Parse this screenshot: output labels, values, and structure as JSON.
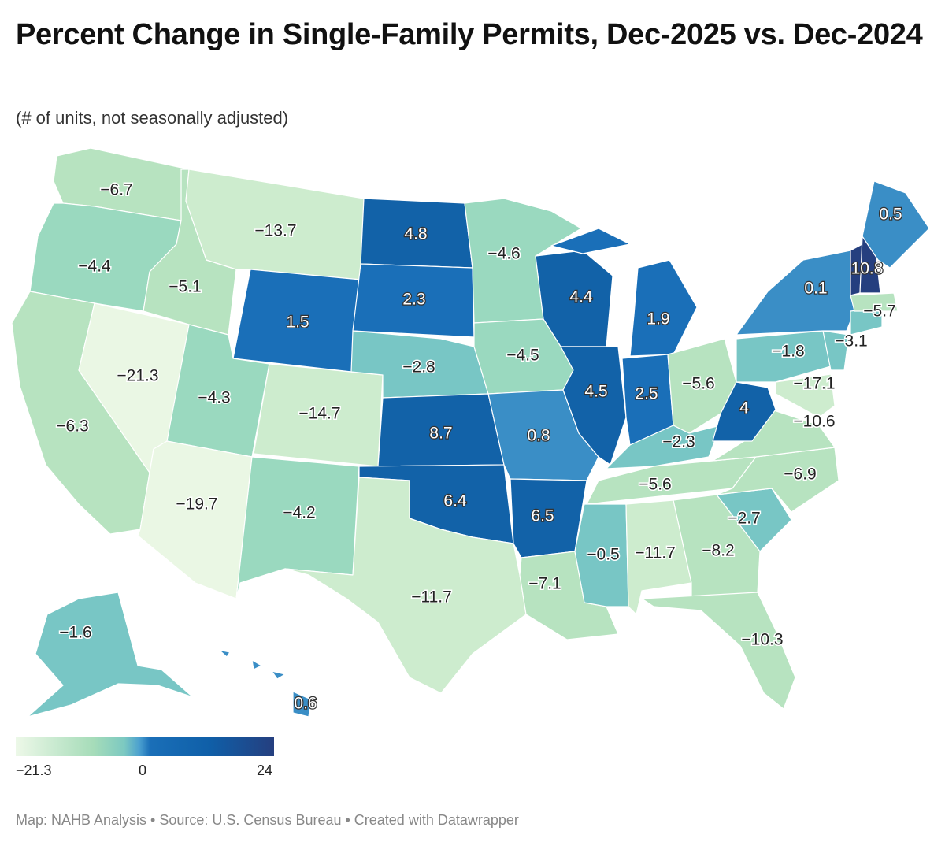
{
  "title": "Percent Change in Single-Family Permits, Dec-2025 vs. Dec-2024",
  "subtitle": "(# of units, not seasonally adjusted)",
  "legend": {
    "min_label": "−21.3",
    "mid_label": "0",
    "max_label": "24"
  },
  "footer": "Map: NAHB Analysis • Source: U.S. Census Bureau • Created with Datawrapper",
  "colors": {
    "very_low": "#eaf7e4",
    "low": "#cdecce",
    "mid_low": "#b7e3c0",
    "near_zero": "#9ad9bf",
    "slight_neg": "#78c6c5",
    "small_pos": "#3a8ec6",
    "mid_pos": "#1a6fb8",
    "high_pos": "#1262a8",
    "max": "#253f7f",
    "border": "#ffffff"
  },
  "states": [
    {
      "name": "WA",
      "value": "−6.7"
    },
    {
      "name": "OR",
      "value": "−4.4"
    },
    {
      "name": "CA",
      "value": "−6.3"
    },
    {
      "name": "NV",
      "value": "−21.3"
    },
    {
      "name": "ID",
      "value": "−5.1"
    },
    {
      "name": "MT",
      "value": "−13.7"
    },
    {
      "name": "WY",
      "value": "1.5"
    },
    {
      "name": "UT",
      "value": "−4.3"
    },
    {
      "name": "AZ",
      "value": "−19.7"
    },
    {
      "name": "CO",
      "value": "−14.7"
    },
    {
      "name": "NM",
      "value": "−4.2"
    },
    {
      "name": "ND",
      "value": "4.8"
    },
    {
      "name": "SD",
      "value": "2.3"
    },
    {
      "name": "NE",
      "value": "−2.8"
    },
    {
      "name": "KS",
      "value": "8.7"
    },
    {
      "name": "OK",
      "value": "6.4"
    },
    {
      "name": "TX",
      "value": "−11.7"
    },
    {
      "name": "MN",
      "value": "−4.6"
    },
    {
      "name": "IA",
      "value": "−4.5"
    },
    {
      "name": "MO",
      "value": "0.8"
    },
    {
      "name": "AR",
      "value": "6.5"
    },
    {
      "name": "LA",
      "value": "−7.1"
    },
    {
      "name": "WI",
      "value": "4.4"
    },
    {
      "name": "IL",
      "value": "4.5"
    },
    {
      "name": "MI",
      "value": "1.9"
    },
    {
      "name": "IN",
      "value": "2.5"
    },
    {
      "name": "OH",
      "value": "−5.6"
    },
    {
      "name": "KY",
      "value": "−2.3"
    },
    {
      "name": "TN",
      "value": "−5.6"
    },
    {
      "name": "MS",
      "value": "−0.5"
    },
    {
      "name": "AL",
      "value": "−11.7"
    },
    {
      "name": "GA",
      "value": "−8.2"
    },
    {
      "name": "FL",
      "value": "−10.3"
    },
    {
      "name": "SC",
      "value": "−2.7"
    },
    {
      "name": "NC",
      "value": "−6.9"
    },
    {
      "name": "VA",
      "value": "−10.6"
    },
    {
      "name": "WV",
      "value": "4"
    },
    {
      "name": "MD",
      "value": "−17.1"
    },
    {
      "name": "PA",
      "value": "−1.8"
    },
    {
      "name": "NY",
      "value": "0.1"
    },
    {
      "name": "NJ",
      "value": "−3.1"
    },
    {
      "name": "CT",
      "value": "−3.1"
    },
    {
      "name": "MA",
      "value": "−5.7"
    },
    {
      "name": "VT",
      "value": "10.8"
    },
    {
      "name": "NH",
      "value": "10.8"
    },
    {
      "name": "ME",
      "value": "0.5"
    },
    {
      "name": "AK",
      "value": "−1.6"
    },
    {
      "name": "HI",
      "value": "0.6"
    }
  ],
  "labels": [
    {
      "state": "WA",
      "text": "−6.7",
      "tone": "dark"
    },
    {
      "state": "OR",
      "text": "−4.4",
      "tone": "dark"
    },
    {
      "state": "CA",
      "text": "−6.3",
      "tone": "dark"
    },
    {
      "state": "NV",
      "text": "−21.3",
      "tone": "dark"
    },
    {
      "state": "ID",
      "text": "−5.1",
      "tone": "dark"
    },
    {
      "state": "MT",
      "text": "−13.7",
      "tone": "dark"
    },
    {
      "state": "WY",
      "text": "1.5",
      "tone": "light"
    },
    {
      "state": "UT",
      "text": "−4.3",
      "tone": "dark"
    },
    {
      "state": "AZ",
      "text": "−19.7",
      "tone": "dark"
    },
    {
      "state": "CO",
      "text": "−14.7",
      "tone": "dark"
    },
    {
      "state": "NM",
      "text": "−4.2",
      "tone": "dark"
    },
    {
      "state": "ND",
      "text": "4.8",
      "tone": "light"
    },
    {
      "state": "SD",
      "text": "2.3",
      "tone": "light"
    },
    {
      "state": "NE",
      "text": "−2.8",
      "tone": "dark"
    },
    {
      "state": "KS",
      "text": "8.7",
      "tone": "light"
    },
    {
      "state": "OK",
      "text": "6.4",
      "tone": "light"
    },
    {
      "state": "TX",
      "text": "−11.7",
      "tone": "dark"
    },
    {
      "state": "MN",
      "text": "−4.6",
      "tone": "dark"
    },
    {
      "state": "IA",
      "text": "−4.5",
      "tone": "dark"
    },
    {
      "state": "MO",
      "text": "0.8",
      "tone": "light"
    },
    {
      "state": "AR",
      "text": "6.5",
      "tone": "light"
    },
    {
      "state": "LA",
      "text": "−7.1",
      "tone": "dark"
    },
    {
      "state": "WI",
      "text": "4.4",
      "tone": "light"
    },
    {
      "state": "IL",
      "text": "4.5",
      "tone": "light"
    },
    {
      "state": "MI",
      "text": "1.9",
      "tone": "light"
    },
    {
      "state": "IN",
      "text": "2.5",
      "tone": "light"
    },
    {
      "state": "OH",
      "text": "−5.6",
      "tone": "dark"
    },
    {
      "state": "KY",
      "text": "−2.3",
      "tone": "dark"
    },
    {
      "state": "TN",
      "text": "−5.6",
      "tone": "dark"
    },
    {
      "state": "MS",
      "text": "−0.5",
      "tone": "dark"
    },
    {
      "state": "AL",
      "text": "−11.7",
      "tone": "dark"
    },
    {
      "state": "GA",
      "text": "−8.2",
      "tone": "dark"
    },
    {
      "state": "FL",
      "text": "−10.3",
      "tone": "dark"
    },
    {
      "state": "SC",
      "text": "−2.7",
      "tone": "dark"
    },
    {
      "state": "NC",
      "text": "−6.9",
      "tone": "dark"
    },
    {
      "state": "VA",
      "text": "−10.6",
      "tone": "dark"
    },
    {
      "state": "WV",
      "text": "4",
      "tone": "light"
    },
    {
      "state": "MD",
      "text": "−17.1",
      "tone": "dark"
    },
    {
      "state": "PA",
      "text": "−1.8",
      "tone": "dark"
    },
    {
      "state": "NY",
      "text": "0.1",
      "tone": "light"
    },
    {
      "state": "NJ",
      "text": "−3.1",
      "tone": "dark"
    },
    {
      "state": "MA",
      "text": "−5.7",
      "tone": "dark"
    },
    {
      "state": "NH",
      "text": "10.8",
      "tone": "light"
    },
    {
      "state": "ME",
      "text": "0.5",
      "tone": "light"
    },
    {
      "state": "AK",
      "text": "−1.6",
      "tone": "dark"
    },
    {
      "state": "HI",
      "text": "0.6",
      "tone": "light"
    }
  ]
}
